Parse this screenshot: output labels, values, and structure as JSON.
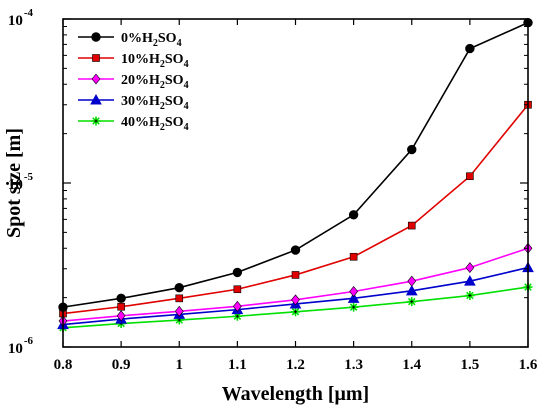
{
  "chart_data": {
    "type": "line",
    "xlabel": "Wavelength [μm]",
    "ylabel": "Spot size [m]",
    "xlim": [
      0.8,
      1.6
    ],
    "ylim": [
      1e-06,
      0.0001
    ],
    "yscale": "log",
    "grid": false,
    "legend_position": "top-left",
    "x_ticks": [
      0.8,
      0.9,
      1.0,
      1.1,
      1.2,
      1.3,
      1.4,
      1.5,
      1.6
    ],
    "x_tick_labels": [
      "0.8",
      "0.9",
      "1",
      "1.1",
      "1.2",
      "1.3",
      "1.4",
      "1.5",
      "1.6"
    ],
    "y_ticks": [
      {
        "value": 1e-06,
        "base": "10",
        "exp": "-6"
      },
      {
        "value": 1e-05,
        "base": "10",
        "exp": "-5"
      },
      {
        "value": 0.0001,
        "base": "10",
        "exp": "-4"
      }
    ],
    "x": [
      0.8,
      0.9,
      1.0,
      1.1,
      1.2,
      1.3,
      1.4,
      1.5,
      1.6
    ],
    "series": [
      {
        "name": "0%H2SO4",
        "label_prefix": "0%H",
        "label_sub1": "2",
        "label_mid": "SO",
        "label_sub2": "4",
        "color": "#000000",
        "marker": "circle",
        "values": [
          1.75e-06,
          1.98e-06,
          2.3e-06,
          2.85e-06,
          3.9e-06,
          6.4e-06,
          1.6e-05,
          6.6e-05,
          9.5e-05
        ]
      },
      {
        "name": "10%H2SO4",
        "label_prefix": "10%H",
        "label_sub1": "2",
        "label_mid": "SO",
        "label_sub2": "4",
        "color": "#e00000",
        "marker": "square",
        "values": [
          1.6e-06,
          1.76e-06,
          1.98e-06,
          2.25e-06,
          2.75e-06,
          3.55e-06,
          5.5e-06,
          1.1e-05,
          3e-05
        ]
      },
      {
        "name": "20%H2SO4",
        "label_prefix": "20%H",
        "label_sub1": "2",
        "label_mid": "SO",
        "label_sub2": "4",
        "color": "#ff00ff",
        "marker": "diamond",
        "values": [
          1.44e-06,
          1.55e-06,
          1.65e-06,
          1.77e-06,
          1.94e-06,
          2.18e-06,
          2.52e-06,
          3.05e-06,
          4e-06
        ]
      },
      {
        "name": "30%H2SO4",
        "label_prefix": "30%H",
        "label_sub1": "2",
        "label_mid": "SO",
        "label_sub2": "4",
        "color": "#0000cc",
        "marker": "triangle",
        "values": [
          1.37e-06,
          1.48e-06,
          1.58e-06,
          1.69e-06,
          1.83e-06,
          1.98e-06,
          2.2e-06,
          2.52e-06,
          3.05e-06
        ]
      },
      {
        "name": "40%H2SO4",
        "label_prefix": "40%H",
        "label_sub1": "2",
        "label_mid": "SO",
        "label_sub2": "4",
        "color": "#00e000",
        "marker": "star",
        "values": [
          1.31e-06,
          1.39e-06,
          1.46e-06,
          1.54e-06,
          1.64e-06,
          1.75e-06,
          1.89e-06,
          2.06e-06,
          2.32e-06
        ]
      }
    ]
  }
}
